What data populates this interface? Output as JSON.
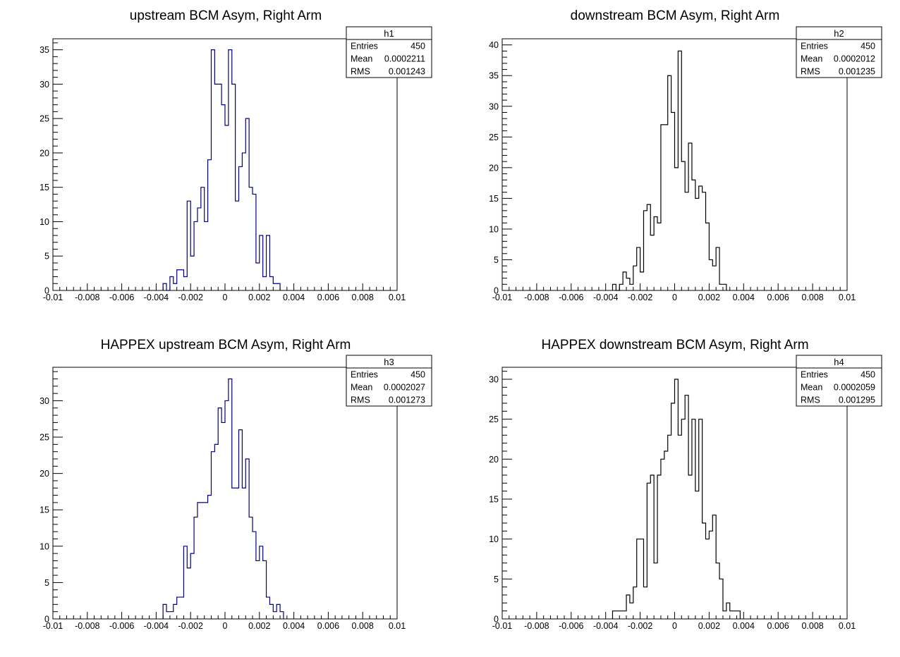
{
  "chart_data": [
    {
      "type": "histogram",
      "title": "upstream BCM Asym, Right Arm",
      "xlim": [
        -0.01,
        0.01
      ],
      "ylim": [
        0,
        36.6
      ],
      "x_ticks": [
        -0.01,
        -0.008,
        -0.006,
        -0.004,
        -0.002,
        0,
        0.002,
        0.004,
        0.006,
        0.008,
        0.01
      ],
      "x_tick_labels": [
        "-0.01",
        "-0.008",
        "-0.006",
        "-0.004",
        "-0.002",
        "0",
        "0.002",
        "0.004",
        "0.006",
        "0.008",
        "0.01"
      ],
      "y_ticks": [
        0,
        5,
        10,
        15,
        20,
        25,
        30,
        35
      ],
      "y_tick_labels": [
        "0",
        "5",
        "10",
        "15",
        "20",
        "25",
        "30",
        "35"
      ],
      "bin_start": -0.0036,
      "bin_width": 0.0002,
      "counts": [
        1,
        0,
        2,
        1,
        3,
        3,
        2,
        13,
        5,
        10,
        12,
        15,
        10,
        19,
        35,
        30,
        30,
        27,
        24,
        35,
        30,
        13,
        18,
        20,
        25,
        15,
        14,
        4,
        8,
        2,
        8,
        2,
        1,
        1
      ],
      "color": "#000080",
      "stats": {
        "name": "h1",
        "rows": [
          {
            "label": "Entries",
            "value": "450"
          },
          {
            "label": "Mean",
            "value": "0.0002211"
          },
          {
            "label": "RMS",
            "value": "0.001243"
          }
        ]
      }
    },
    {
      "type": "histogram",
      "title": "downstream BCM Asym, Right Arm",
      "xlim": [
        -0.01,
        0.01
      ],
      "ylim": [
        0,
        41
      ],
      "x_ticks": [
        -0.01,
        -0.008,
        -0.006,
        -0.004,
        -0.002,
        0,
        0.002,
        0.004,
        0.006,
        0.008,
        0.01
      ],
      "x_tick_labels": [
        "-0.01",
        "-0.008",
        "-0.006",
        "-0.004",
        "-0.002",
        "0",
        "0.002",
        "0.004",
        "0.006",
        "0.008",
        "0.01"
      ],
      "y_ticks": [
        0,
        5,
        10,
        15,
        20,
        25,
        30,
        35,
        40
      ],
      "y_tick_labels": [
        "0",
        "5",
        "10",
        "15",
        "20",
        "25",
        "30",
        "35",
        "40"
      ],
      "bin_start": -0.0036,
      "bin_width": 0.0002,
      "counts": [
        1,
        0,
        1,
        3,
        2,
        1,
        4,
        7,
        3,
        13,
        14,
        9,
        12,
        11,
        27,
        27,
        35,
        29,
        20,
        39,
        21,
        16,
        24,
        18,
        15,
        17,
        16,
        11,
        5,
        4,
        7,
        1,
        1
      ],
      "color": "#000000",
      "stats": {
        "name": "h2",
        "rows": [
          {
            "label": "Entries",
            "value": "450"
          },
          {
            "label": "Mean",
            "value": "0.0002012"
          },
          {
            "label": "RMS",
            "value": "0.001235"
          }
        ]
      }
    },
    {
      "type": "histogram",
      "title": "HAPPEX upstream BCM Asym, Right Arm",
      "xlim": [
        -0.01,
        0.01
      ],
      "ylim": [
        0,
        34.6
      ],
      "x_ticks": [
        -0.01,
        -0.008,
        -0.006,
        -0.004,
        -0.002,
        0,
        0.002,
        0.004,
        0.006,
        0.008,
        0.01
      ],
      "x_tick_labels": [
        "-0.01",
        "-0.008",
        "-0.006",
        "-0.004",
        "-0.002",
        "0",
        "0.002",
        "0.004",
        "0.006",
        "0.008",
        "0.01"
      ],
      "y_ticks": [
        0,
        5,
        10,
        15,
        20,
        25,
        30
      ],
      "y_tick_labels": [
        "0",
        "5",
        "10",
        "15",
        "20",
        "25",
        "30"
      ],
      "bin_start": -0.0036,
      "bin_width": 0.0002,
      "counts": [
        2,
        1,
        1,
        2,
        3,
        3,
        10,
        7,
        9,
        14,
        16,
        16,
        16,
        17,
        23,
        24,
        29,
        27,
        30,
        33,
        18,
        18,
        26,
        18,
        22,
        14,
        12,
        8,
        10,
        8,
        3,
        2,
        1,
        2,
        1
      ],
      "color": "#000080",
      "stats": {
        "name": "h3",
        "rows": [
          {
            "label": "Entries",
            "value": "450"
          },
          {
            "label": "Mean",
            "value": "0.0002027"
          },
          {
            "label": "RMS",
            "value": "0.001273"
          }
        ]
      }
    },
    {
      "type": "histogram",
      "title": "HAPPEX downstream BCM Asym, Right Arm",
      "xlim": [
        -0.01,
        0.01
      ],
      "ylim": [
        0,
        31.5
      ],
      "x_ticks": [
        -0.01,
        -0.008,
        -0.006,
        -0.004,
        -0.002,
        0,
        0.002,
        0.004,
        0.006,
        0.008,
        0.01
      ],
      "x_tick_labels": [
        "-0.01",
        "-0.008",
        "-0.006",
        "-0.004",
        "-0.002",
        "0",
        "0.002",
        "0.004",
        "0.006",
        "0.008",
        "0.01"
      ],
      "y_ticks": [
        0,
        5,
        10,
        15,
        20,
        25,
        30
      ],
      "y_tick_labels": [
        "0",
        "5",
        "10",
        "15",
        "20",
        "25",
        "30"
      ],
      "bin_start": -0.0036,
      "bin_width": 0.0002,
      "counts": [
        1,
        1,
        1,
        1,
        3,
        2,
        4,
        10,
        10,
        4,
        17,
        18,
        7,
        18,
        20,
        21,
        23,
        27,
        30,
        23,
        25,
        28,
        18,
        25,
        16,
        25,
        12,
        10,
        11,
        13,
        7,
        5,
        1,
        2,
        1,
        1,
        1
      ],
      "color": "#000000",
      "stats": {
        "name": "h4",
        "rows": [
          {
            "label": "Entries",
            "value": "450"
          },
          {
            "label": "Mean",
            "value": "0.0002059"
          },
          {
            "label": "RMS",
            "value": "0.001295"
          }
        ]
      }
    }
  ]
}
